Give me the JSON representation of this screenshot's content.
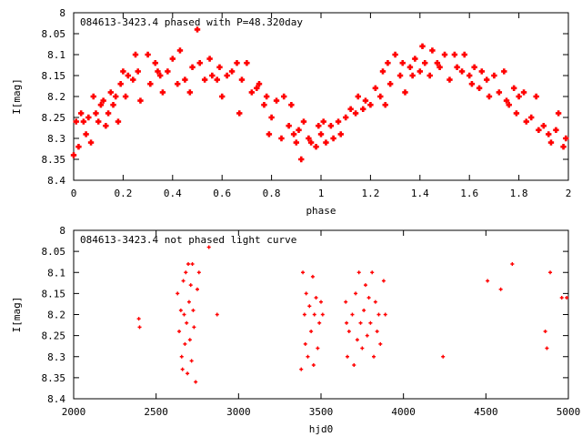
{
  "chart_data": [
    {
      "type": "scatter",
      "title": "084613-3423.4 phased with P=48.320day",
      "xlabel": "phase",
      "ylabel": "I[mag]",
      "xlim": [
        0,
        2
      ],
      "ylim": [
        8,
        8.4
      ],
      "y_inverted": true,
      "grid": false,
      "x_ticks": [
        "0",
        "0.2",
        "0.4",
        "0.6",
        "0.8",
        "1",
        "1.2",
        "1.4",
        "1.6",
        "1.8",
        "2"
      ],
      "y_ticks": [
        "8",
        "8.05",
        "8.1",
        "8.15",
        "8.2",
        "8.25",
        "8.3",
        "8.35",
        "8.4"
      ],
      "marker": "plus-bold",
      "color": "#ff0000",
      "x": [
        0.0,
        0.01,
        0.02,
        0.03,
        0.04,
        0.05,
        0.06,
        0.07,
        0.08,
        0.09,
        0.1,
        0.11,
        0.12,
        0.13,
        0.14,
        0.15,
        0.16,
        0.17,
        0.18,
        0.19,
        0.2,
        0.21,
        0.22,
        0.24,
        0.25,
        0.26,
        0.27,
        0.3,
        0.31,
        0.33,
        0.34,
        0.35,
        0.36,
        0.38,
        0.4,
        0.42,
        0.43,
        0.45,
        0.47,
        0.48,
        0.5,
        0.51,
        0.53,
        0.55,
        0.56,
        0.58,
        0.59,
        0.6,
        0.62,
        0.64,
        0.66,
        0.67,
        0.68,
        0.7,
        0.72,
        0.74,
        0.75,
        0.77,
        0.78,
        0.79,
        0.8,
        0.82,
        0.84,
        0.85,
        0.87,
        0.88,
        0.89,
        0.9,
        0.91,
        0.92,
        0.93,
        0.95,
        0.96,
        0.98,
        0.99,
        1.0,
        1.01,
        1.02,
        1.04,
        1.05,
        1.07,
        1.08,
        1.1,
        1.12,
        1.14,
        1.15,
        1.17,
        1.18,
        1.2,
        1.22,
        1.24,
        1.25,
        1.26,
        1.27,
        1.28,
        1.3,
        1.32,
        1.33,
        1.34,
        1.36,
        1.37,
        1.38,
        1.4,
        1.41,
        1.42,
        1.44,
        1.45,
        1.47,
        1.48,
        1.5,
        1.52,
        1.54,
        1.55,
        1.57,
        1.58,
        1.6,
        1.61,
        1.62,
        1.64,
        1.65,
        1.67,
        1.68,
        1.7,
        1.72,
        1.74,
        1.75,
        1.76,
        1.78,
        1.79,
        1.8,
        1.82,
        1.83,
        1.85,
        1.87,
        1.88,
        1.9,
        1.92,
        1.93,
        1.95,
        1.96,
        1.98,
        1.99
      ],
      "y": [
        8.34,
        8.26,
        8.32,
        8.24,
        8.26,
        8.29,
        8.25,
        8.31,
        8.2,
        8.24,
        8.26,
        8.22,
        8.21,
        8.27,
        8.24,
        8.19,
        8.22,
        8.2,
        8.26,
        8.17,
        8.14,
        8.2,
        8.15,
        8.16,
        8.1,
        8.14,
        8.21,
        8.1,
        8.17,
        8.12,
        8.14,
        8.15,
        8.19,
        8.14,
        8.11,
        8.17,
        8.09,
        8.16,
        8.19,
        8.13,
        8.04,
        8.12,
        8.16,
        8.11,
        8.15,
        8.16,
        8.13,
        8.2,
        8.15,
        8.14,
        8.12,
        8.24,
        8.16,
        8.12,
        8.19,
        8.18,
        8.17,
        8.22,
        8.2,
        8.29,
        8.25,
        8.21,
        8.3,
        8.2,
        8.27,
        8.22,
        8.29,
        8.31,
        8.28,
        8.35,
        8.26,
        8.3,
        8.31,
        8.32,
        8.27,
        8.29,
        8.26,
        8.31,
        8.27,
        8.3,
        8.26,
        8.29,
        8.25,
        8.23,
        8.24,
        8.2,
        8.23,
        8.21,
        8.22,
        8.18,
        8.2,
        8.14,
        8.22,
        8.12,
        8.17,
        8.1,
        8.15,
        8.12,
        8.19,
        8.13,
        8.15,
        8.11,
        8.14,
        8.08,
        8.12,
        8.15,
        8.09,
        8.12,
        8.13,
        8.1,
        8.16,
        8.1,
        8.13,
        8.14,
        8.1,
        8.15,
        8.17,
        8.13,
        8.18,
        8.14,
        8.16,
        8.2,
        8.15,
        8.19,
        8.14,
        8.21,
        8.22,
        8.18,
        8.24,
        8.2,
        8.19,
        8.26,
        8.25,
        8.2,
        8.28,
        8.27,
        8.29,
        8.31,
        8.28,
        8.24,
        8.32,
        8.3
      ]
    },
    {
      "type": "scatter",
      "title": "084613-3423.4 not phased light curve",
      "xlabel": "hjd0",
      "ylabel": "I[mag]",
      "xlim": [
        2000,
        5000
      ],
      "ylim": [
        8,
        8.4
      ],
      "y_inverted": true,
      "grid": false,
      "x_ticks": [
        "2000",
        "2500",
        "3000",
        "3500",
        "4000",
        "4500",
        "5000"
      ],
      "y_ticks": [
        "8",
        "8.05",
        "8.1",
        "8.15",
        "8.2",
        "8.25",
        "8.3",
        "8.35",
        "8.4"
      ],
      "marker": "plus-small",
      "color": "#ff0000",
      "x": [
        2395,
        2400,
        2630,
        2640,
        2650,
        2655,
        2660,
        2665,
        2670,
        2675,
        2680,
        2685,
        2690,
        2695,
        2700,
        2705,
        2710,
        2715,
        2720,
        2725,
        2730,
        2740,
        2750,
        2760,
        2820,
        2870,
        3380,
        3390,
        3400,
        3405,
        3410,
        3420,
        3430,
        3440,
        3450,
        3455,
        3460,
        3470,
        3480,
        3490,
        3500,
        3510,
        3650,
        3655,
        3660,
        3670,
        3690,
        3700,
        3710,
        3720,
        3730,
        3740,
        3750,
        3760,
        3770,
        3780,
        3790,
        3800,
        3810,
        3820,
        3830,
        3840,
        3850,
        3860,
        3880,
        3890,
        4240,
        4510,
        4590,
        4660,
        4860,
        4870,
        4890,
        4960,
        4990
      ],
      "y": [
        8.21,
        8.23,
        8.15,
        8.24,
        8.19,
        8.3,
        8.33,
        8.12,
        8.2,
        8.27,
        8.1,
        8.22,
        8.34,
        8.08,
        8.17,
        8.26,
        8.13,
        8.31,
        8.08,
        8.19,
        8.23,
        8.36,
        8.14,
        8.1,
        8.04,
        8.2,
        8.33,
        8.1,
        8.2,
        8.27,
        8.15,
        8.3,
        8.18,
        8.24,
        8.11,
        8.32,
        8.2,
        8.16,
        8.28,
        8.22,
        8.17,
        8.2,
        8.17,
        8.22,
        8.3,
        8.24,
        8.2,
        8.32,
        8.15,
        8.26,
        8.1,
        8.22,
        8.28,
        8.19,
        8.13,
        8.25,
        8.16,
        8.22,
        8.1,
        8.3,
        8.17,
        8.24,
        8.2,
        8.27,
        8.12,
        8.2,
        8.3,
        8.12,
        8.14,
        8.08,
        8.24,
        8.28,
        8.1,
        8.16,
        8.16
      ]
    }
  ]
}
